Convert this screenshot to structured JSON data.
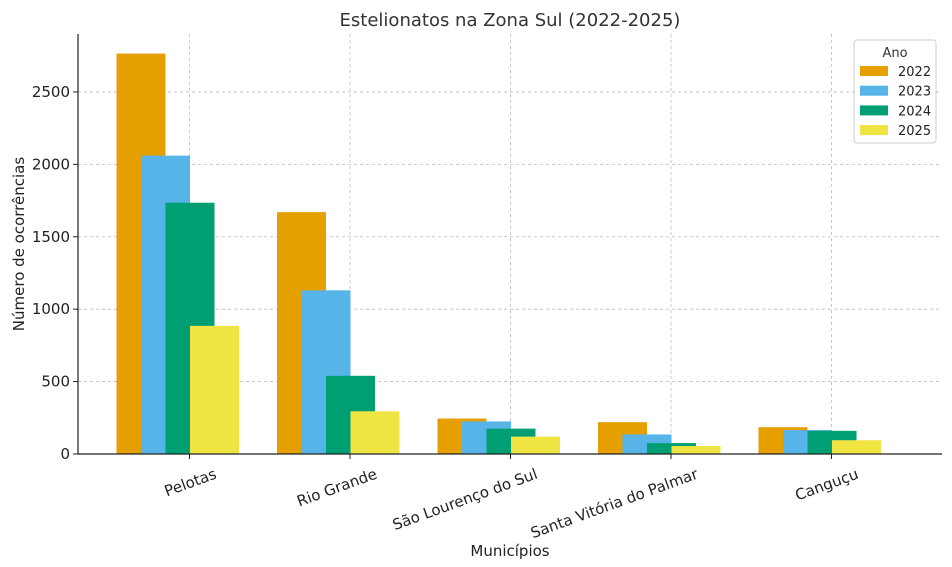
{
  "chart_data": {
    "type": "bar",
    "title": "Estelionatos na Zona Sul (2022-2025)",
    "xlabel": "Municípios",
    "ylabel": "Número de ocorrências",
    "categories": [
      "Pelotas",
      "Rio Grande",
      "São Lourenço do Sul",
      "Santa Vitória do Palmar",
      "Canguçu"
    ],
    "series": [
      {
        "name": "2022",
        "color": "#E69F00",
        "values": [
          2765,
          1670,
          245,
          220,
          185
        ]
      },
      {
        "name": "2023",
        "color": "#56B4E9",
        "values": [
          2060,
          1130,
          225,
          135,
          165
        ]
      },
      {
        "name": "2024",
        "color": "#009E73",
        "values": [
          1735,
          540,
          175,
          75,
          160
        ]
      },
      {
        "name": "2025",
        "color": "#F0E442",
        "values": [
          885,
          295,
          120,
          55,
          95
        ]
      }
    ],
    "ylim": [
      0,
      2900
    ],
    "yticks": [
      0,
      500,
      1000,
      1500,
      2000,
      2500
    ],
    "legend": {
      "title": "Ano",
      "position": "top-right"
    },
    "grid": true
  }
}
